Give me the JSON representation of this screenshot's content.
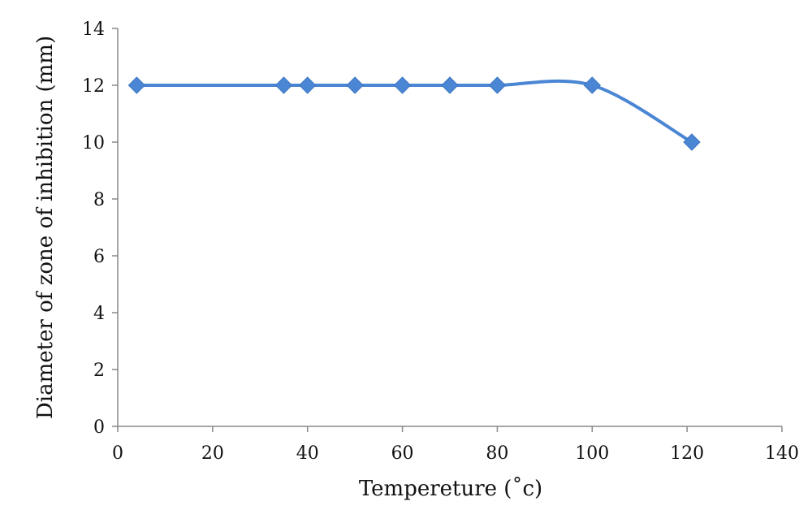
{
  "chart_data": {
    "type": "line",
    "title": "",
    "xlabel": "Tempereture (˚c)",
    "ylabel": "Diameter of zone of inhibition (mm)",
    "xlim": [
      0,
      140
    ],
    "ylim": [
      0,
      14
    ],
    "xticks": [
      "0",
      "20",
      "40",
      "60",
      "80",
      "100",
      "120",
      "140"
    ],
    "yticks": [
      "0",
      "2",
      "4",
      "6",
      "8",
      "10",
      "12",
      "14"
    ],
    "grid": false,
    "legend": "none",
    "marker": "diamond",
    "smooth": true,
    "colors": {
      "series": "#4a86d4",
      "axis": "#888888",
      "text": "#111111"
    },
    "series": [
      {
        "x": [
          4,
          35,
          40,
          50,
          60,
          70,
          80,
          100,
          121
        ],
        "y": [
          12,
          12,
          12,
          12,
          12,
          12,
          12,
          12,
          10
        ]
      }
    ]
  }
}
